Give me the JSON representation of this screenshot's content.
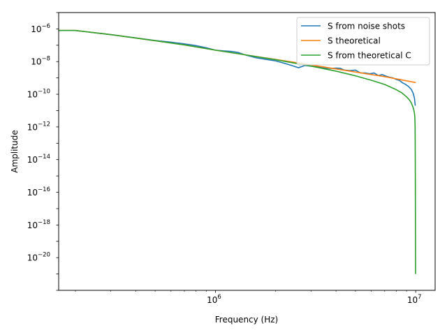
{
  "chart_data": {
    "type": "line",
    "title": "",
    "xlabel": "Frequency (Hz)",
    "ylabel": "Amplitude",
    "xscale": "log",
    "yscale": "log",
    "xlim": [
      165000,
      12500000
    ],
    "ylim": [
      1e-22,
      1e-05
    ],
    "x_ticks": [
      {
        "value": 1000000,
        "base": "10",
        "exp": "6"
      },
      {
        "value": 10000000,
        "base": "10",
        "exp": "7"
      }
    ],
    "y_ticks": [
      {
        "value": 1e-06,
        "base": "10",
        "exp": "−6"
      },
      {
        "value": 1e-08,
        "base": "10",
        "exp": "−8"
      },
      {
        "value": 1e-10,
        "base": "10",
        "exp": "−10"
      },
      {
        "value": 1e-12,
        "base": "10",
        "exp": "−12"
      },
      {
        "value": 1e-14,
        "base": "10",
        "exp": "−14"
      },
      {
        "value": 1e-16,
        "base": "10",
        "exp": "−16"
      },
      {
        "value": 1e-18,
        "base": "10",
        "exp": "−18"
      },
      {
        "value": 1e-20,
        "base": "10",
        "exp": "−20"
      }
    ],
    "grid": false,
    "legend_position": "top-right",
    "series": [
      {
        "name": "S from noise shots",
        "color": "#1f77b4",
        "x": [
          165000,
          200000,
          300000,
          400000,
          500000,
          600000,
          700000,
          800000,
          900000,
          1000000,
          1100000,
          1200000,
          1300000,
          1400000,
          1600000,
          1800000,
          2000000,
          2200000,
          2400000,
          2600000,
          2800000,
          3000000,
          3200000,
          3500000,
          3800000,
          4000000,
          4200000,
          4400000,
          4700000,
          5000000,
          5300000,
          5600000,
          5900000,
          6200000,
          6500000,
          6800000,
          7100000,
          7400000,
          7700000,
          8000000,
          8300000,
          8600000,
          8900000,
          9200000,
          9500000,
          9700000,
          9850000,
          9950000
        ],
        "y": [
          8e-07,
          8e-07,
          4.5e-07,
          2.8e-07,
          1.95e-07,
          1.55e-07,
          1.2e-07,
          9.5e-08,
          7e-08,
          5e-08,
          4.5e-08,
          4.2e-08,
          3.6e-08,
          2.6e-08,
          1.7e-08,
          1.35e-08,
          1.1e-08,
          8e-09,
          5.8e-09,
          4.2e-09,
          5.8e-09,
          5.2e-09,
          5e-09,
          4e-09,
          3.8e-09,
          4e-09,
          3.9e-09,
          3e-09,
          2.8e-09,
          3e-09,
          2e-09,
          2e-09,
          1.8e-09,
          2e-09,
          1.4e-09,
          1.6e-09,
          1.3e-09,
          1.1e-09,
          1e-09,
          8e-10,
          7e-10,
          5e-10,
          4e-10,
          3e-10,
          2e-10,
          1.2e-10,
          6e-11,
          2e-11
        ]
      },
      {
        "name": "S theoretical",
        "color": "#ff7f0e",
        "x": [
          165000,
          200000,
          300000,
          500000,
          700000,
          1000000,
          1500000,
          2000000,
          3000000,
          5000000,
          7000000,
          10000000
        ],
        "y": [
          8e-07,
          8e-07,
          4.5e-07,
          1.9e-07,
          1.05e-07,
          5e-08,
          2.3e-08,
          1.35e-08,
          6.2e-09,
          2.3e-09,
          1.2e-09,
          5.2e-10
        ]
      },
      {
        "name": "S from theoretical C",
        "color": "#2ca02c",
        "x": [
          165000,
          200000,
          300000,
          500000,
          700000,
          1000000,
          1500000,
          2000000,
          3000000,
          4000000,
          5000000,
          6000000,
          7000000,
          8000000,
          8500000,
          9000000,
          9300000,
          9500000,
          9700000,
          9800000,
          9850000,
          9900000,
          9930000,
          9950000,
          9960000,
          9965000,
          9970000,
          9980000,
          9985000
        ],
        "y": [
          8e-07,
          8e-07,
          4.5e-07,
          1.9e-07,
          1.05e-07,
          5e-08,
          2.3e-08,
          1.3e-08,
          5.3e-09,
          2.6e-09,
          1.35e-09,
          7.2e-10,
          4e-10,
          1.9e-10,
          1.25e-10,
          7e-11,
          4.5e-11,
          3e-11,
          1.6e-11,
          1e-11,
          7e-12,
          4e-12,
          1e-12,
          1e-14,
          1e-16,
          1e-17,
          1e-18,
          1e-20,
          1e-21
        ]
      }
    ]
  }
}
